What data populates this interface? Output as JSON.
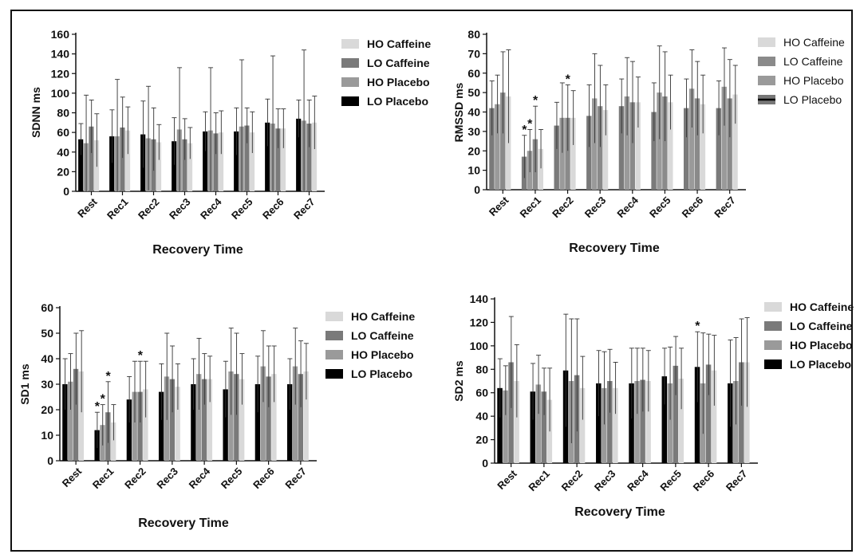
{
  "chart_data": [
    {
      "type": "bar",
      "ylabel": "SDNN ms",
      "xlabel": "Recovery Time",
      "ylim": [
        0,
        160
      ],
      "yticks": [
        0,
        20,
        40,
        60,
        80,
        100,
        120,
        140,
        160
      ],
      "categories": [
        "Rest",
        "Rec1",
        "Rec2",
        "Rec3",
        "Rec4",
        "Rec5",
        "Rec6",
        "Rec7"
      ],
      "legend_bold": true,
      "legend_order": [
        "HO Caffeine",
        "LO Caffeine",
        "HO Placebo",
        "LO Placebo"
      ],
      "series": [
        {
          "name": "LO Placebo",
          "color": "#000000",
          "values": [
            53,
            56,
            58,
            51,
            61,
            61,
            70,
            74
          ],
          "errors": [
            16,
            27,
            34,
            24,
            20,
            24,
            24,
            19
          ]
        },
        {
          "name": "HO Placebo",
          "color": "#9a9a9a",
          "values": [
            49,
            56,
            54,
            63,
            62,
            66,
            69,
            72
          ],
          "errors": [
            49,
            58,
            53,
            63,
            64,
            68,
            69,
            72
          ]
        },
        {
          "name": "LO Caffeine",
          "color": "#7a7a7a",
          "values": [
            66,
            65,
            53,
            53,
            59,
            67,
            64,
            69
          ],
          "errors": [
            27,
            31,
            32,
            21,
            21,
            18,
            20,
            24
          ]
        },
        {
          "name": "HO Caffeine",
          "color": "#d9d9d9",
          "values": [
            52,
            62,
            50,
            49,
            60,
            60,
            64,
            70
          ],
          "errors": [
            27,
            24,
            18,
            16,
            22,
            21,
            20,
            27
          ]
        }
      ],
      "annotations": []
    },
    {
      "type": "bar",
      "ylabel": "RMSSD ms",
      "xlabel": "Recovery Time",
      "ylim": [
        0,
        80
      ],
      "yticks": [
        0,
        10,
        20,
        30,
        40,
        50,
        60,
        70,
        80
      ],
      "categories": [
        "Rest",
        "Rec1",
        "Rec2",
        "Rec3",
        "Rec4",
        "Rec5",
        "Rec6",
        "Rec7"
      ],
      "legend_bold": false,
      "legend_order": [
        "HO Caffeine",
        "LO Caffeine",
        "HO Placebo",
        "LO Placebo"
      ],
      "series": [
        {
          "name": "LO Placebo",
          "color": "#7a7a7a",
          "values": [
            42,
            17,
            33,
            38,
            43,
            40,
            42,
            42
          ],
          "errors": [
            14,
            11,
            12,
            16,
            14,
            15,
            15,
            14
          ]
        },
        {
          "name": "HO Placebo",
          "color": "#9a9a9a",
          "values": [
            44,
            20,
            37,
            47,
            48,
            50,
            52,
            53
          ],
          "errors": [
            15,
            11,
            18,
            23,
            20,
            24,
            20,
            20
          ]
        },
        {
          "name": "LO Caffeine",
          "color": "#8a8a8a",
          "values": [
            50,
            26,
            37,
            43,
            45,
            48,
            47,
            47
          ],
          "errors": [
            21,
            17,
            17,
            21,
            21,
            23,
            19,
            20
          ]
        },
        {
          "name": "HO Caffeine",
          "color": "#d9d9d9",
          "values": [
            48,
            21,
            37,
            41,
            45,
            45,
            44,
            49
          ],
          "errors": [
            24,
            10,
            14,
            13,
            13,
            14,
            15,
            15
          ]
        }
      ],
      "annotations": [
        {
          "category": "Rec1",
          "series": "LO Placebo",
          "text": "*"
        },
        {
          "category": "Rec1",
          "series": "HO Placebo",
          "text": "*"
        },
        {
          "category": "Rec1",
          "series": "LO Caffeine",
          "text": "*"
        },
        {
          "category": "Rec2",
          "series": "LO Caffeine",
          "text": "*"
        }
      ]
    },
    {
      "type": "bar",
      "ylabel": "SD1 ms",
      "xlabel": "Recovery Time",
      "ylim": [
        0,
        60
      ],
      "yticks": [
        0,
        10,
        20,
        30,
        40,
        50,
        60
      ],
      "categories": [
        "Rest",
        "Rec1",
        "Rec2",
        "Rec3",
        "Rec4",
        "Rec5",
        "Rec6",
        "Rec7"
      ],
      "legend_bold": true,
      "legend_order": [
        "HO Caffeine",
        "LO Caffeine",
        "HO Placebo",
        "LO Placebo"
      ],
      "series": [
        {
          "name": "LO Placebo",
          "color": "#000000",
          "values": [
            30,
            12,
            24,
            27,
            30,
            28,
            30,
            30
          ],
          "errors": [
            10,
            7,
            9,
            11,
            10,
            11,
            11,
            10
          ]
        },
        {
          "name": "HO Placebo",
          "color": "#9a9a9a",
          "values": [
            31,
            14,
            27,
            33,
            34,
            35,
            37,
            37
          ],
          "errors": [
            11,
            8,
            12,
            17,
            14,
            17,
            14,
            15
          ]
        },
        {
          "name": "LO Caffeine",
          "color": "#7a7a7a",
          "values": [
            36,
            19,
            27,
            32,
            32,
            34,
            33,
            34
          ],
          "errors": [
            14,
            12,
            12,
            13,
            10,
            16,
            12,
            13
          ]
        },
        {
          "name": "HO Caffeine",
          "color": "#d9d9d9",
          "values": [
            35,
            15,
            28,
            29,
            32,
            32,
            34,
            35
          ],
          "errors": [
            16,
            7,
            11,
            9,
            9,
            10,
            11,
            11
          ]
        }
      ],
      "annotations": [
        {
          "category": "Rec1",
          "series": "LO Placebo",
          "text": "*"
        },
        {
          "category": "Rec1",
          "series": "HO Placebo",
          "text": "*"
        },
        {
          "category": "Rec1",
          "series": "LO Caffeine",
          "text": "*"
        },
        {
          "category": "Rec2",
          "series": "LO Caffeine",
          "text": "*"
        }
      ]
    },
    {
      "type": "bar",
      "ylabel": "SD2 ms",
      "xlabel": "Recovery Time",
      "ylim": [
        0,
        140
      ],
      "yticks": [
        0,
        20,
        40,
        60,
        80,
        100,
        120,
        140
      ],
      "categories": [
        "Rest",
        "Rec1",
        "Rec2",
        "Rec3",
        "Rec4",
        "Rec5",
        "Rec6",
        "Rec7"
      ],
      "legend_bold": true,
      "legend_order": [
        "HO Caffeine",
        "LO Caffeine",
        "HO Placebo",
        "LO Placebo"
      ],
      "series": [
        {
          "name": "LO Placebo",
          "color": "#000000",
          "values": [
            64,
            61,
            79,
            68,
            68,
            74,
            82,
            68
          ],
          "errors": [
            25,
            24,
            48,
            28,
            30,
            24,
            30,
            37
          ]
        },
        {
          "name": "HO Placebo",
          "color": "#9a9a9a",
          "values": [
            62,
            67,
            70,
            64,
            70,
            68,
            68,
            70
          ],
          "errors": [
            21,
            25,
            53,
            31,
            28,
            31,
            43,
            37
          ]
        },
        {
          "name": "LO Caffeine",
          "color": "#7a7a7a",
          "values": [
            86,
            61,
            75,
            70,
            71,
            83,
            84,
            86
          ],
          "errors": [
            39,
            20,
            48,
            27,
            27,
            25,
            26,
            37
          ]
        },
        {
          "name": "HO Caffeine",
          "color": "#d9d9d9",
          "values": [
            70,
            54,
            64,
            64,
            70,
            72,
            79,
            86
          ],
          "errors": [
            31,
            27,
            27,
            22,
            26,
            26,
            30,
            38
          ]
        }
      ],
      "annotations": [
        {
          "category": "Rec6",
          "series": "LO Placebo",
          "text": "*"
        }
      ]
    }
  ]
}
